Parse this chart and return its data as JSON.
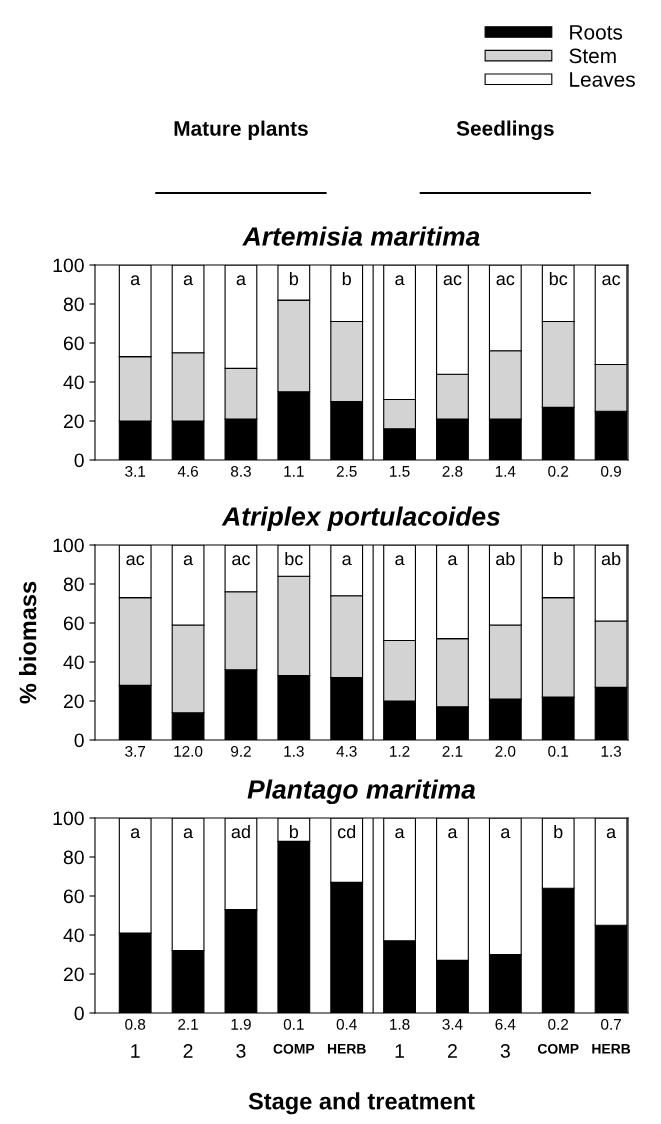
{
  "chart_data": [
    {
      "type": "bar",
      "stacked": true,
      "title": "Artemisia maritima",
      "categories": [
        null,
        null,
        null,
        null,
        null,
        null,
        null,
        null,
        null,
        null
      ],
      "ylim": [
        0,
        100
      ],
      "yticks": [
        0,
        20,
        40,
        60,
        80,
        100
      ],
      "tick_labels": "y",
      "legend": "top right",
      "series": [
        {
          "name": "Roots",
          "color": "#000000",
          "values": [
            20,
            20,
            21,
            35,
            30,
            16,
            21,
            21,
            27,
            25
          ]
        },
        {
          "name": "Stem",
          "color": "#d3d3d3",
          "values": [
            33,
            35,
            26,
            47,
            41,
            15,
            23,
            35,
            44,
            24
          ]
        },
        {
          "name": "Leaves",
          "color": "#ffffff",
          "values": [
            47,
            45,
            53,
            18,
            29,
            69,
            56,
            44,
            29,
            51
          ]
        }
      ],
      "annotations": [
        "a",
        "a",
        "a",
        "b",
        "b",
        "a",
        "ac",
        "ac",
        "bc",
        "ac",
        "3.1",
        "4.6",
        "8.3",
        "1.1",
        "2.5",
        "1.5",
        "2.8",
        "1.4",
        "0.2",
        "0.9",
        "Mature plants",
        "Seedlings"
      ]
    },
    {
      "type": "bar",
      "stacked": true,
      "title": "Atriplex portulacoides",
      "ylabel": "% biomass",
      "categories": [
        null,
        null,
        null,
        null,
        null,
        null,
        null,
        null,
        null,
        null
      ],
      "ylim": [
        0,
        100
      ],
      "yticks": [
        0,
        20,
        40,
        60,
        80,
        100
      ],
      "tick_labels": "y",
      "series": [
        {
          "color": "#000000",
          "values": [
            28,
            14,
            36,
            33,
            32,
            20,
            17,
            21,
            22,
            27
          ]
        },
        {
          "color": "#d3d3d3",
          "values": [
            45,
            45,
            40,
            51,
            42,
            31,
            35,
            38,
            51,
            34
          ]
        },
        {
          "color": "#ffffff",
          "values": [
            27,
            41,
            24,
            16,
            26,
            49,
            48,
            41,
            27,
            39
          ]
        }
      ],
      "annotations": [
        "ac",
        "a",
        "ac",
        "bc",
        "a",
        "a",
        "a",
        "ab",
        "b",
        "ab",
        "3.7",
        "12.0",
        "9.2",
        "1.3",
        "4.3",
        "1.2",
        "2.1",
        "2.0",
        "0.1",
        "1.3"
      ]
    },
    {
      "type": "bar",
      "stacked": true,
      "title": "Plantago maritima",
      "xlabel": "Stage and treatment",
      "categories": [
        "1",
        "2",
        "3",
        "COMP",
        "HERB",
        "1",
        "2",
        "3",
        "COMP",
        "HERB"
      ],
      "ylim": [
        0,
        100
      ],
      "yticks": [
        0,
        20,
        40,
        60,
        80,
        100
      ],
      "series": [
        {
          "color": "#000000",
          "values": [
            41,
            32,
            53,
            88,
            67,
            37,
            27,
            30,
            64,
            45
          ]
        },
        {
          "color": "#ffffff",
          "values": [
            59,
            68,
            47,
            12,
            33,
            63,
            73,
            70,
            36,
            55
          ]
        }
      ],
      "annotations": [
        "a",
        "a",
        "ad",
        "b",
        "cd",
        "a",
        "a",
        "a",
        "b",
        "a",
        "0.8",
        "2.1",
        "1.9",
        "0.1",
        "0.4",
        "1.8",
        "3.4",
        "6.4",
        "0.2",
        "0.7"
      ]
    }
  ]
}
